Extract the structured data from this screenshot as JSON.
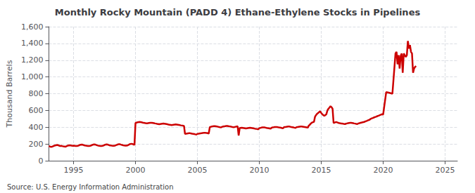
{
  "chart_data": {
    "type": "line",
    "title": "Monthly Rocky Mountain (PADD 4) Ethane-Ethylene Stocks in Pipelines",
    "ylabel": "Thousand Barrels",
    "annotation": "Source: U.S. Energy Information Administration",
    "color": "#cc0000",
    "grid": true,
    "xlim": [
      1993,
      2026
    ],
    "xticks": [
      1995,
      2000,
      2005,
      2010,
      2015,
      2020,
      2025
    ],
    "ylim": [
      0,
      1600
    ],
    "yticks": [
      0,
      200,
      400,
      600,
      800,
      {
        "value": 1000,
        "label": "1,000"
      },
      {
        "value": 1200,
        "label": "1,200"
      },
      {
        "value": 1400,
        "label": "1,400"
      },
      {
        "value": 1600,
        "label": "1,600"
      }
    ],
    "x": [
      1993,
      1993.083,
      1993.167,
      1993.25,
      1993.333,
      1993.417,
      1993.5,
      1993.583,
      1993.667,
      1993.75,
      1993.833,
      1993.917,
      1994,
      1994.083,
      1994.167,
      1994.25,
      1994.333,
      1994.417,
      1994.5,
      1994.583,
      1994.667,
      1994.75,
      1994.833,
      1994.917,
      1995,
      1995.083,
      1995.167,
      1995.25,
      1995.333,
      1995.417,
      1995.5,
      1995.583,
      1995.667,
      1995.75,
      1995.833,
      1995.917,
      1996,
      1996.083,
      1996.167,
      1996.25,
      1996.333,
      1996.417,
      1996.5,
      1996.583,
      1996.667,
      1996.75,
      1996.833,
      1996.917,
      1997,
      1997.083,
      1997.167,
      1997.25,
      1997.333,
      1997.417,
      1997.5,
      1997.583,
      1997.667,
      1997.75,
      1997.833,
      1997.917,
      1998,
      1998.083,
      1998.167,
      1998.25,
      1998.333,
      1998.417,
      1998.5,
      1998.583,
      1998.667,
      1998.75,
      1998.833,
      1998.917,
      1999,
      1999.083,
      1999.167,
      1999.25,
      1999.333,
      1999.417,
      1999.5,
      1999.583,
      1999.667,
      1999.75,
      1999.833,
      1999.917,
      2000,
      2000.083,
      2000.167,
      2000.25,
      2000.333,
      2000.417,
      2000.5,
      2000.583,
      2000.667,
      2000.75,
      2000.833,
      2000.917,
      2001,
      2001.083,
      2001.167,
      2001.25,
      2001.333,
      2001.417,
      2001.5,
      2001.583,
      2001.667,
      2001.75,
      2001.833,
      2001.917,
      2002,
      2002.083,
      2002.167,
      2002.25,
      2002.333,
      2002.417,
      2002.5,
      2002.583,
      2002.667,
      2002.75,
      2002.833,
      2002.917,
      2003,
      2003.083,
      2003.167,
      2003.25,
      2003.333,
      2003.417,
      2003.5,
      2003.583,
      2003.667,
      2003.75,
      2003.833,
      2003.917,
      2004,
      2004.083,
      2004.167,
      2004.25,
      2004.333,
      2004.417,
      2004.5,
      2004.583,
      2004.667,
      2004.75,
      2004.833,
      2004.917,
      2005,
      2005.083,
      2005.167,
      2005.25,
      2005.333,
      2005.417,
      2005.5,
      2005.583,
      2005.667,
      2005.75,
      2005.833,
      2005.917,
      2006,
      2006.083,
      2006.167,
      2006.25,
      2006.333,
      2006.417,
      2006.5,
      2006.583,
      2006.667,
      2006.75,
      2006.833,
      2006.917,
      2007,
      2007.083,
      2007.167,
      2007.25,
      2007.333,
      2007.417,
      2007.5,
      2007.583,
      2007.667,
      2007.75,
      2007.833,
      2007.917,
      2008,
      2008.083,
      2008.167,
      2008.25,
      2008.333,
      2008.417,
      2008.5,
      2008.583,
      2008.667,
      2008.75,
      2008.833,
      2008.917,
      2009,
      2009.083,
      2009.167,
      2009.25,
      2009.333,
      2009.417,
      2009.5,
      2009.583,
      2009.667,
      2009.75,
      2009.833,
      2009.917,
      2010,
      2010.083,
      2010.167,
      2010.25,
      2010.333,
      2010.417,
      2010.5,
      2010.583,
      2010.667,
      2010.75,
      2010.833,
      2010.917,
      2011,
      2011.083,
      2011.167,
      2011.25,
      2011.333,
      2011.417,
      2011.5,
      2011.583,
      2011.667,
      2011.75,
      2011.833,
      2011.917,
      2012,
      2012.083,
      2012.167,
      2012.25,
      2012.333,
      2012.417,
      2012.5,
      2012.583,
      2012.667,
      2012.75,
      2012.833,
      2012.917,
      2013,
      2013.083,
      2013.167,
      2013.25,
      2013.333,
      2013.417,
      2013.5,
      2013.583,
      2013.667,
      2013.75,
      2013.833,
      2013.917,
      2014,
      2014.083,
      2014.167,
      2014.25,
      2014.333,
      2014.417,
      2014.5,
      2014.583,
      2014.667,
      2014.75,
      2014.833,
      2014.917,
      2015,
      2015.083,
      2015.167,
      2015.25,
      2015.333,
      2015.417,
      2015.5,
      2015.583,
      2015.667,
      2015.75,
      2015.833,
      2015.917,
      2016,
      2016.083,
      2016.167,
      2016.25,
      2016.333,
      2016.417,
      2016.5,
      2016.583,
      2016.667,
      2016.75,
      2016.833,
      2016.917,
      2017,
      2017.083,
      2017.167,
      2017.25,
      2017.333,
      2017.417,
      2017.5,
      2017.583,
      2017.667,
      2017.75,
      2017.833,
      2017.917,
      2018,
      2018.083,
      2018.167,
      2018.25,
      2018.333,
      2018.417,
      2018.5,
      2018.583,
      2018.667,
      2018.75,
      2018.833,
      2018.917,
      2019,
      2019.083,
      2019.167,
      2019.25,
      2019.333,
      2019.417,
      2019.5,
      2019.583,
      2019.667,
      2019.75,
      2019.833,
      2019.917,
      2020,
      2020.25,
      2020.5,
      2020.75,
      2021,
      2021.083,
      2021.167,
      2021.25,
      2021.333,
      2021.417,
      2021.5,
      2021.583,
      2021.667,
      2021.75,
      2021.833,
      2021.917,
      2022,
      2022.083,
      2022.167,
      2022.25,
      2022.333,
      2022.417,
      2022.5,
      2022.583,
      2022.667
    ],
    "values": [
      175,
      170,
      165,
      168,
      172,
      178,
      182,
      185,
      188,
      185,
      180,
      175,
      178,
      175,
      172,
      170,
      168,
      172,
      178,
      182,
      185,
      183,
      180,
      178,
      180,
      178,
      175,
      175,
      178,
      182,
      188,
      190,
      192,
      190,
      185,
      182,
      180,
      178,
      175,
      175,
      178,
      182,
      188,
      192,
      195,
      193,
      188,
      183,
      180,
      178,
      175,
      175,
      178,
      182,
      188,
      192,
      195,
      193,
      188,
      183,
      182,
      180,
      178,
      178,
      180,
      185,
      190,
      195,
      198,
      196,
      192,
      188,
      185,
      183,
      180,
      180,
      182,
      188,
      195,
      200,
      202,
      200,
      195,
      190,
      450,
      455,
      458,
      460,
      462,
      460,
      458,
      455,
      453,
      450,
      448,
      445,
      448,
      450,
      452,
      453,
      452,
      450,
      448,
      445,
      443,
      440,
      438,
      435,
      438,
      440,
      442,
      443,
      442,
      440,
      438,
      435,
      432,
      430,
      428,
      425,
      428,
      430,
      432,
      433,
      432,
      430,
      428,
      425,
      422,
      420,
      418,
      415,
      320,
      322,
      325,
      327,
      328,
      328,
      325,
      322,
      320,
      318,
      315,
      312,
      320,
      322,
      325,
      327,
      328,
      330,
      332,
      333,
      332,
      330,
      328,
      325,
      400,
      405,
      408,
      410,
      412,
      412,
      410,
      408,
      405,
      402,
      400,
      398,
      405,
      408,
      410,
      412,
      415,
      415,
      412,
      410,
      408,
      405,
      402,
      400,
      402,
      405,
      408,
      410,
      300,
      390,
      392,
      393,
      392,
      390,
      388,
      385,
      388,
      390,
      392,
      393,
      392,
      390,
      388,
      385,
      382,
      380,
      378,
      375,
      390,
      392,
      395,
      397,
      398,
      398,
      395,
      392,
      390,
      388,
      385,
      382,
      395,
      398,
      400,
      402,
      403,
      403,
      400,
      398,
      395,
      393,
      390,
      388,
      400,
      403,
      405,
      407,
      408,
      408,
      405,
      402,
      400,
      398,
      395,
      392,
      400,
      402,
      405,
      407,
      408,
      408,
      406,
      404,
      402,
      400,
      398,
      395,
      420,
      430,
      445,
      455,
      460,
      465,
      525,
      545,
      560,
      570,
      580,
      590,
      570,
      555,
      545,
      535,
      545,
      555,
      600,
      620,
      635,
      650,
      640,
      620,
      450,
      455,
      460,
      460,
      455,
      450,
      448,
      445,
      445,
      442,
      440,
      438,
      442,
      445,
      448,
      450,
      452,
      452,
      450,
      448,
      445,
      443,
      440,
      438,
      445,
      448,
      452,
      455,
      458,
      460,
      465,
      470,
      475,
      480,
      485,
      490,
      500,
      505,
      510,
      515,
      520,
      525,
      530,
      535,
      540,
      545,
      550,
      555,
      550,
      820,
      810,
      800,
      1280,
      1300,
      1150,
      1260,
      1100,
      1250,
      1280,
      1050,
      1280,
      1260,
      1240,
      1260,
      1430,
      1340,
      1380,
      1300,
      1280,
      1050,
      1100,
      1120,
      1130
    ]
  }
}
